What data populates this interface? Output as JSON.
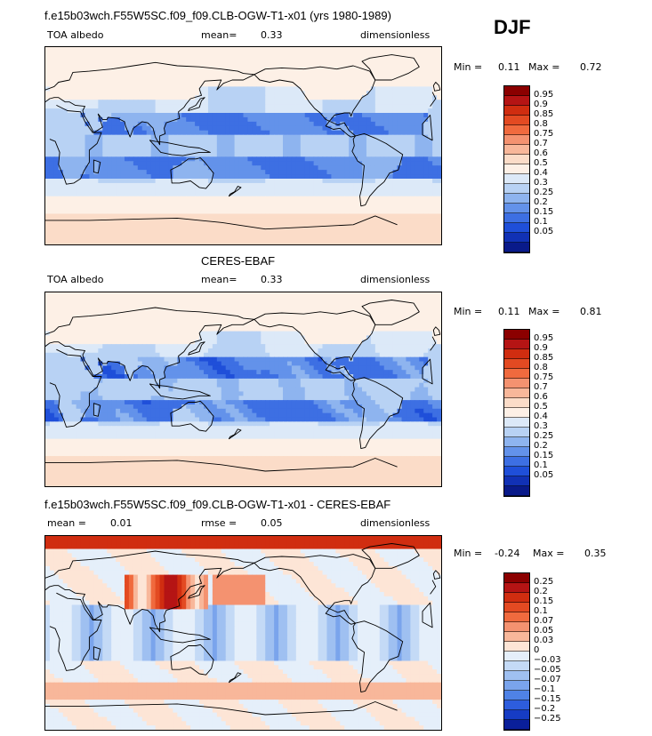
{
  "season": "DJF",
  "panels": [
    {
      "title": "f.e15b03wch.F55W5SC.f09_f09.CLB-OGW-T1-x01 (yrs 1980-1989)",
      "left_label": "TOA albedo",
      "stat_label": "mean=",
      "stat_value": "0.33",
      "units": "dimensionless",
      "min_label": "Min =",
      "min_value": "0.11",
      "max_label": "Max =",
      "max_value": "0.72",
      "kind": "abs"
    },
    {
      "title": "CERES-EBAF",
      "left_label": "TOA albedo",
      "stat_label": "mean=",
      "stat_value": "0.33",
      "units": "dimensionless",
      "min_label": "Min =",
      "min_value": "0.11",
      "max_label": "Max =",
      "max_value": "0.81",
      "kind": "abs"
    },
    {
      "title": "f.e15b03wch.F55W5SC.f09_f09.CLB-OGW-T1-x01 - CERES-EBAF",
      "left_label": "mean =",
      "left_value": "0.01",
      "stat_label": "rmse =",
      "stat_value": "0.05",
      "units": "dimensionless",
      "min_label": "Min =",
      "min_value": "-0.24",
      "max_label": "Max =",
      "max_value": "0.35",
      "kind": "diff"
    }
  ],
  "colorbars": {
    "abs": {
      "labels": [
        "0.95",
        "0.9",
        "0.85",
        "0.8",
        "0.75",
        "0.7",
        "0.6",
        "0.5",
        "0.4",
        "0.3",
        "0.25",
        "0.2",
        "0.15",
        "0.1",
        "0.05"
      ],
      "colors": [
        "#8b0000",
        "#b51414",
        "#d02d10",
        "#e34a22",
        "#f06a3e",
        "#f49270",
        "#f8b79a",
        "#fbdcc8",
        "#fdf0e6",
        "#dce9f8",
        "#b8d2f4",
        "#8eb4ef",
        "#6392ea",
        "#3d6fe3",
        "#1f4fd9",
        "#1131b5",
        "#091a8a"
      ]
    },
    "diff": {
      "labels": [
        "0.25",
        "0.2",
        "0.15",
        "0.1",
        "0.07",
        "0.05",
        "0.03",
        "0",
        "-0.03",
        "-0.05",
        "-0.07",
        "-0.1",
        "-0.15",
        "-0.2",
        "-0.25"
      ],
      "colors": [
        "#8b0000",
        "#b51414",
        "#d02d10",
        "#e34a22",
        "#f06a3e",
        "#f49270",
        "#f8b79a",
        "#fde5d6",
        "#e5effa",
        "#c4daf6",
        "#9fc0f1",
        "#7aa4ec",
        "#4f82e6",
        "#2d5ddd",
        "#163cc4",
        "#0a1f9a"
      ]
    }
  },
  "chart_data": [
    {
      "type": "heatmap",
      "title": "f.e15b03wch.F55W5SC.f09_f09.CLB-OGW-T1-x01 (yrs 1980-1989)",
      "variable": "TOA albedo",
      "units": "dimensionless",
      "mean": 0.33,
      "min": 0.11,
      "max": 0.72,
      "levels": [
        0.05,
        0.1,
        0.15,
        0.2,
        0.25,
        0.3,
        0.4,
        0.5,
        0.6,
        0.7,
        0.75,
        0.8,
        0.85,
        0.9,
        0.95
      ]
    },
    {
      "type": "heatmap",
      "title": "CERES-EBAF",
      "variable": "TOA albedo",
      "units": "dimensionless",
      "mean": 0.33,
      "min": 0.11,
      "max": 0.81,
      "levels": [
        0.05,
        0.1,
        0.15,
        0.2,
        0.25,
        0.3,
        0.4,
        0.5,
        0.6,
        0.7,
        0.75,
        0.8,
        0.85,
        0.9,
        0.95
      ]
    },
    {
      "type": "heatmap",
      "title": "f.e15b03wch.F55W5SC.f09_f09.CLB-OGW-T1-x01 - CERES-EBAF",
      "units": "dimensionless",
      "mean": 0.01,
      "rmse": 0.05,
      "min": -0.24,
      "max": 0.35,
      "levels": [
        -0.25,
        -0.2,
        -0.15,
        -0.1,
        -0.07,
        -0.05,
        -0.03,
        0,
        0.03,
        0.05,
        0.07,
        0.1,
        0.15,
        0.2,
        0.25
      ]
    }
  ]
}
